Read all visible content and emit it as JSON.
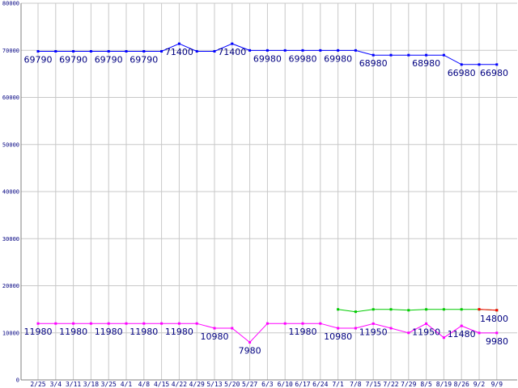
{
  "chart_data": {
    "type": "line",
    "title": "",
    "xlabel": "",
    "ylabel": "",
    "ylim": [
      0,
      80000
    ],
    "y_ticks": [
      "0",
      "10000",
      "20000",
      "30000",
      "40000",
      "50000",
      "60000",
      "70000",
      "80000"
    ],
    "grid": true,
    "categories": [
      "2/25",
      "3/4",
      "3/11",
      "3/18",
      "3/25",
      "4/1",
      "4/8",
      "4/15",
      "4/22",
      "4/29",
      "5/13",
      "5/20",
      "5/27",
      "6/3",
      "6/10",
      "6/17",
      "6/24",
      "7/1",
      "7/8",
      "7/15",
      "7/22",
      "7/29",
      "8/5",
      "8/19",
      "8/26",
      "9/2",
      "9/9"
    ],
    "series": [
      {
        "color": "#0000ff",
        "values": [
          69790,
          69790,
          69790,
          69790,
          69790,
          69790,
          69790,
          69790,
          71400,
          69790,
          69790,
          71400,
          69980,
          69980,
          69980,
          69980,
          69980,
          69980,
          69980,
          68980,
          68980,
          68980,
          68980,
          68980,
          66980,
          66980,
          66980
        ],
        "labels": [
          "69790",
          null,
          "69790",
          null,
          "69790",
          null,
          "69790",
          null,
          "71400",
          null,
          null,
          "71400",
          null,
          "69980",
          null,
          "69980",
          null,
          "69980",
          null,
          "68980",
          null,
          null,
          "68980",
          null,
          "66980",
          null,
          "66980"
        ]
      },
      {
        "color": "#ff00ff",
        "values": [
          11980,
          11980,
          11980,
          11980,
          11980,
          11980,
          11980,
          11980,
          11980,
          11980,
          10980,
          10980,
          7980,
          11980,
          11980,
          11980,
          11980,
          10980,
          10980,
          11950,
          10980,
          10000,
          11950,
          8980,
          11480,
          9980,
          9980
        ],
        "labels": [
          "11980",
          null,
          "11980",
          null,
          "11980",
          null,
          "11980",
          null,
          "11980",
          null,
          "10980",
          null,
          "7980",
          null,
          null,
          "11980",
          null,
          "10980",
          null,
          "11950",
          null,
          null,
          "11950",
          null,
          "11480",
          null,
          "9980"
        ]
      },
      {
        "color": "#00cc00",
        "values": [
          null,
          null,
          null,
          null,
          null,
          null,
          null,
          null,
          null,
          null,
          null,
          null,
          null,
          null,
          null,
          null,
          null,
          14980,
          14480,
          14980,
          14980,
          14800,
          14980,
          14980,
          14980,
          14980,
          14800
        ],
        "labels": [
          null,
          null,
          null,
          null,
          null,
          null,
          null,
          null,
          null,
          null,
          null,
          null,
          null,
          null,
          null,
          null,
          null,
          null,
          null,
          null,
          null,
          null,
          null,
          null,
          null,
          null,
          "14800"
        ]
      },
      {
        "color": "#ff0000",
        "values": [
          null,
          null,
          null,
          null,
          null,
          null,
          null,
          null,
          null,
          null,
          null,
          null,
          null,
          null,
          null,
          null,
          null,
          null,
          null,
          null,
          null,
          null,
          null,
          null,
          null,
          15000,
          14800
        ],
        "labels": []
      }
    ]
  }
}
